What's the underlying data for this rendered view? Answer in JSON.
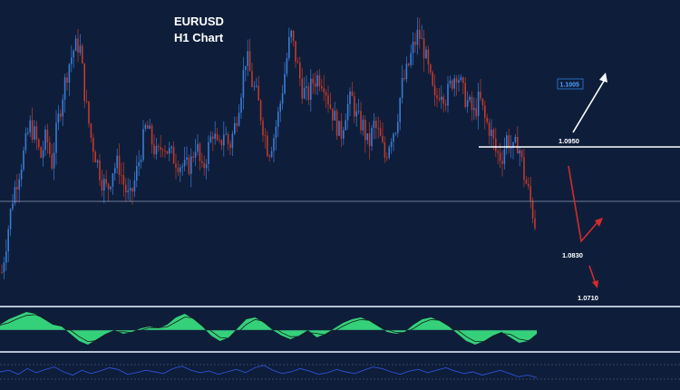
{
  "chart_data": {
    "type": "candlestick",
    "title": "EURUSD",
    "subtitle": "H1 Chart",
    "symbol": "EURUSD",
    "timeframe": "H1",
    "grid": false,
    "colors": {
      "background": "#0e1e3a",
      "bull": "#3a7bd5",
      "bear": "#c0392b",
      "level_line": "#ffffff",
      "up_arrow": "#ffffff",
      "down_arrow": "#d42b2b",
      "osc_fill": "#34d17a",
      "osc_line": "#1a1a1a",
      "rsi_line": "#2f4fd8"
    },
    "price_levels": [
      {
        "value": 1.095,
        "label": "1.0950",
        "style": "solid",
        "shown_as": "horizontal-line"
      },
      {
        "value": 1.078,
        "label": "",
        "style": "thin",
        "shown_as": "horizontal-line"
      }
    ],
    "targets": [
      {
        "label": "1.1005",
        "direction": "up",
        "boxed": true
      },
      {
        "label": "1.0830",
        "direction": "down-then-up",
        "boxed": false
      },
      {
        "label": "1.0710",
        "direction": "down",
        "boxed": false
      }
    ],
    "price_path": [
      1.072,
      1.079,
      1.086,
      1.09,
      1.094,
      1.099,
      1.097,
      1.093,
      1.097,
      1.092,
      1.099,
      1.105,
      1.11,
      1.113,
      1.114,
      1.104,
      1.097,
      1.093,
      1.089,
      1.087,
      1.091,
      1.092,
      1.088,
      1.085,
      1.089,
      1.094,
      1.099,
      1.096,
      1.093,
      1.096,
      1.094,
      1.093,
      1.092,
      1.091,
      1.092,
      1.096,
      1.09,
      1.094,
      1.098,
      1.094,
      1.098,
      1.095,
      1.099,
      1.105,
      1.112,
      1.107,
      1.104,
      1.099,
      1.094,
      1.097,
      1.102,
      1.109,
      1.116,
      1.111,
      1.106,
      1.104,
      1.107,
      1.108,
      1.107,
      1.103,
      1.1,
      1.097,
      1.102,
      1.104,
      1.1,
      1.099,
      1.095,
      1.099,
      1.097,
      1.093,
      1.097,
      1.099,
      1.106,
      1.109,
      1.113,
      1.116,
      1.113,
      1.108,
      1.103,
      1.106,
      1.104,
      1.107,
      1.109,
      1.105,
      1.103,
      1.101,
      1.104,
      1.1,
      1.098,
      1.094,
      1.093,
      1.097,
      1.094,
      1.096,
      1.09,
      1.086,
      1.081
    ],
    "oscillator": [
      0.3,
      0.6,
      0.8,
      1.0,
      0.9,
      0.6,
      0.3,
      0.2,
      -0.2,
      -0.6,
      -0.8,
      -0.5,
      -0.2,
      0.0,
      -0.2,
      -0.1,
      0.1,
      0.2,
      0.1,
      0.3,
      0.7,
      0.9,
      0.6,
      0.2,
      -0.3,
      -0.6,
      -0.4,
      0.1,
      0.6,
      0.7,
      0.4,
      0.0,
      -0.3,
      -0.5,
      -0.3,
      0.0,
      -0.4,
      -0.2,
      0.1,
      0.4,
      0.6,
      0.7,
      0.5,
      0.2,
      -0.1,
      -0.2,
      -0.1,
      0.3,
      0.6,
      0.7,
      0.5,
      0.2,
      -0.2,
      -0.6,
      -0.8,
      -0.6,
      -0.3,
      -0.1,
      -0.4,
      -0.7,
      -0.6,
      -0.2
    ],
    "rsi": [
      50,
      52,
      47,
      54,
      49,
      53,
      56,
      50,
      46,
      52,
      48,
      51,
      55,
      53,
      47,
      49,
      52,
      50,
      48,
      54,
      57,
      52,
      49,
      51,
      47,
      50,
      53,
      49,
      55,
      58,
      52,
      48,
      50,
      54,
      51,
      47,
      49,
      53,
      50,
      48,
      52,
      56,
      54,
      50,
      47,
      51,
      53,
      49,
      52,
      55,
      51,
      48,
      50,
      46,
      49,
      52,
      48,
      44,
      46,
      43
    ]
  }
}
